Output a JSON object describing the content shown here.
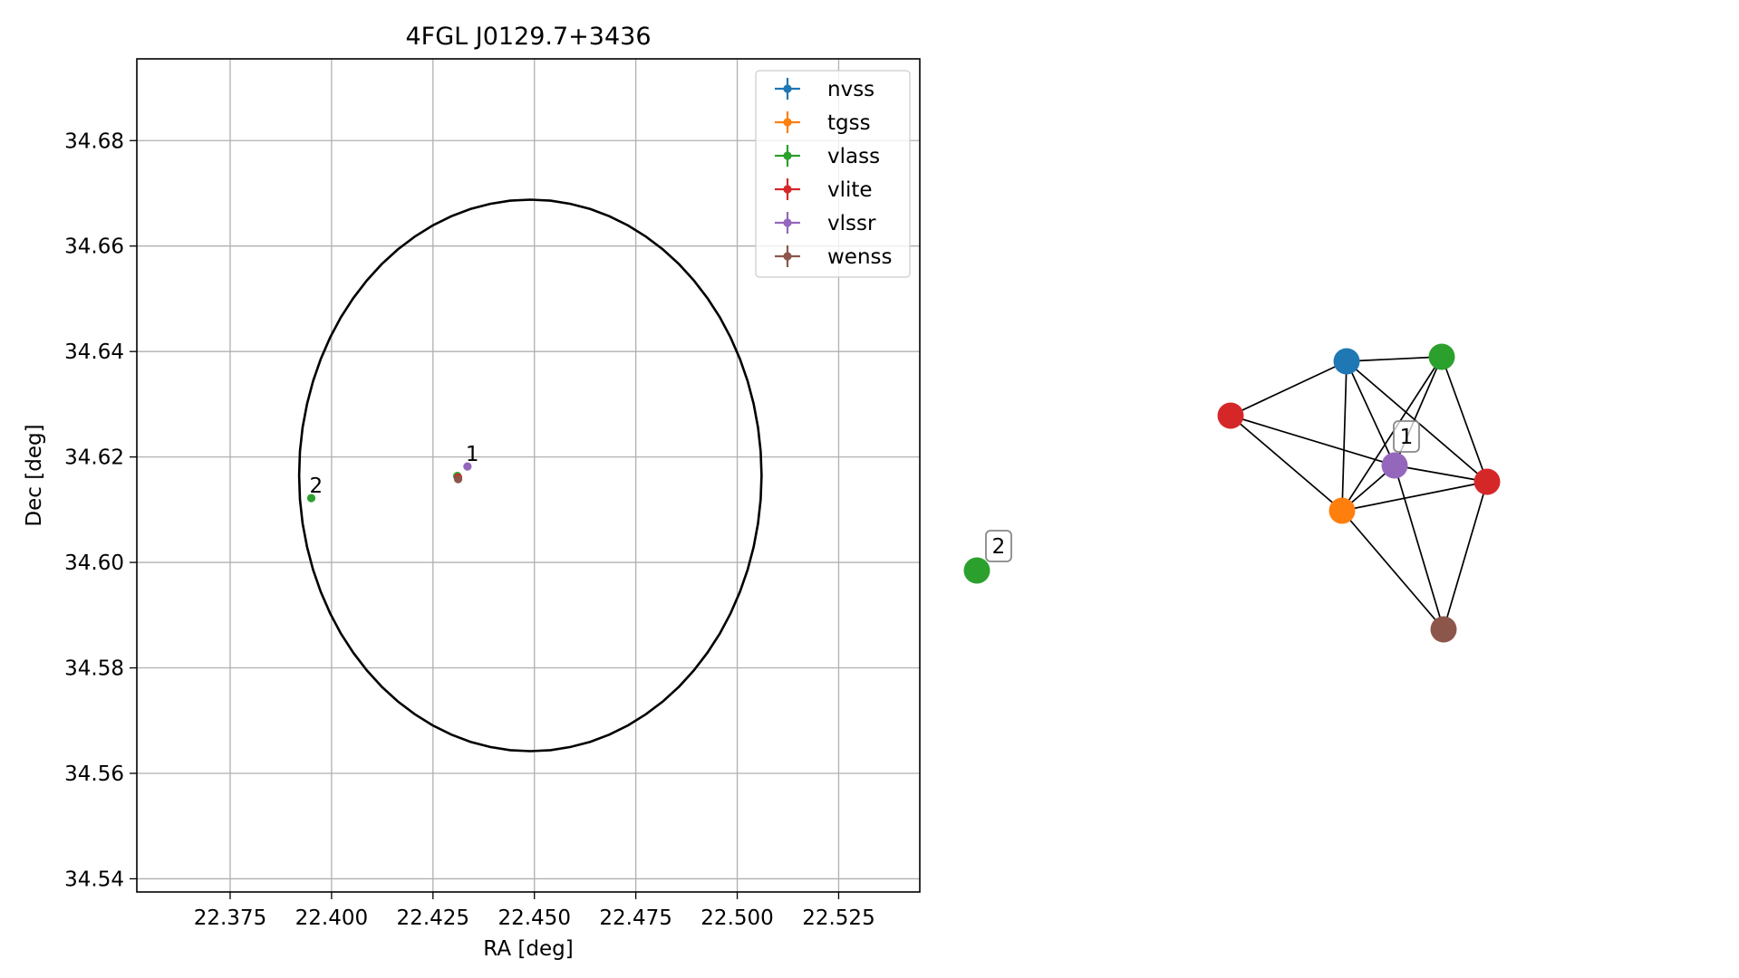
{
  "chart_data": [
    {
      "type": "scatter",
      "title": "4FGL J0129.7+3436",
      "xlabel": "RA [deg]",
      "ylabel": "Dec [deg]",
      "xlim": [
        22.352,
        22.545
      ],
      "ylim": [
        34.5375,
        34.6955
      ],
      "xticks": [
        22.375,
        22.4,
        22.425,
        22.45,
        22.475,
        22.5,
        22.525
      ],
      "xtick_labels": [
        "22.375",
        "22.400",
        "22.425",
        "22.450",
        "22.475",
        "22.500",
        "22.525"
      ],
      "yticks": [
        34.54,
        34.56,
        34.58,
        34.6,
        34.62,
        34.64,
        34.66,
        34.68
      ],
      "ytick_labels": [
        "34.54",
        "34.56",
        "34.58",
        "34.60",
        "34.62",
        "34.64",
        "34.66",
        "34.68"
      ],
      "grid": true,
      "legend_position": "top-right",
      "series": [
        {
          "name": "nvss",
          "color": "#1f77b4",
          "points": [
            [
              22.431,
              34.6163
            ]
          ]
        },
        {
          "name": "tgss",
          "color": "#ff7f0e",
          "points": [
            [
              22.4311,
              34.6162
            ]
          ]
        },
        {
          "name": "vlass",
          "color": "#2ca02c",
          "points": [
            [
              22.431,
              34.6164
            ],
            [
              22.395,
              34.6122
            ]
          ]
        },
        {
          "name": "vlite",
          "color": "#d62728",
          "points": [
            [
              22.4312,
              34.6161
            ]
          ]
        },
        {
          "name": "vlssr",
          "color": "#9467bd",
          "points": [
            [
              22.4335,
              34.6182
            ]
          ]
        },
        {
          "name": "wenss",
          "color": "#8c564b",
          "points": [
            [
              22.4312,
              34.6158
            ]
          ]
        }
      ],
      "annotations": [
        {
          "text": "1",
          "x": 22.4335,
          "y": 34.6182
        },
        {
          "text": "2",
          "x": 22.395,
          "y": 34.6122
        }
      ],
      "ellipse": {
        "center": [
          22.449,
          34.6165
        ],
        "semi_axes": [
          0.057,
          0.0523
        ],
        "color": "#000000"
      }
    },
    {
      "type": "network",
      "nodes": [
        {
          "id": "n1",
          "color": "#1f77b4"
        },
        {
          "id": "n2",
          "color": "#2ca02c"
        },
        {
          "id": "n3",
          "color": "#d62728"
        },
        {
          "id": "n4",
          "color": "#9467bd",
          "label": "1"
        },
        {
          "id": "n5",
          "color": "#d62728"
        },
        {
          "id": "n6",
          "color": "#ff7f0e"
        },
        {
          "id": "n7",
          "color": "#8c564b"
        },
        {
          "id": "n8",
          "color": "#2ca02c",
          "label": "2"
        }
      ],
      "edges": [
        [
          "n1",
          "n2"
        ],
        [
          "n1",
          "n3"
        ],
        [
          "n1",
          "n4"
        ],
        [
          "n1",
          "n5"
        ],
        [
          "n1",
          "n6"
        ],
        [
          "n2",
          "n4"
        ],
        [
          "n2",
          "n5"
        ],
        [
          "n2",
          "n6"
        ],
        [
          "n3",
          "n4"
        ],
        [
          "n3",
          "n6"
        ],
        [
          "n4",
          "n5"
        ],
        [
          "n4",
          "n6"
        ],
        [
          "n4",
          "n7"
        ],
        [
          "n5",
          "n6"
        ],
        [
          "n5",
          "n7"
        ],
        [
          "n6",
          "n7"
        ]
      ]
    }
  ]
}
